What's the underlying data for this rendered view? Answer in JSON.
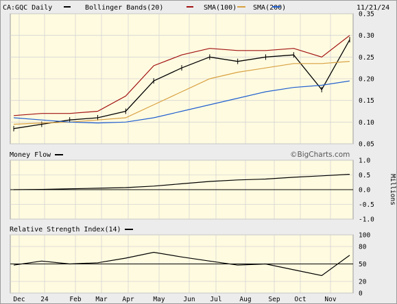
{
  "header": {
    "symbol_label": "CA:GQC Daily",
    "date": "11/21/24",
    "legend": [
      {
        "label": "Bollinger Bands(20)",
        "color": "#a01010"
      },
      {
        "label": "SMA(100)",
        "color": "#d8a040"
      },
      {
        "label": "SMA(200)",
        "color": "#1f5fd0"
      }
    ]
  },
  "watermark": "©BigCharts.com",
  "colors": {
    "panel_bg": "#fffbe0",
    "frame_bg": "#ececec",
    "price": "#000000",
    "bollinger": "#a01010",
    "sma100": "#d8a040",
    "sma200": "#1f5fd0"
  },
  "x_labels": [
    "Dec",
    "24",
    "Feb",
    "Mar",
    "Apr",
    "May",
    "Jun",
    "Jul",
    "Aug",
    "Sep",
    "Oct",
    "Nov"
  ],
  "chart_data": [
    {
      "type": "line",
      "panel": "price",
      "ylim": [
        0.05,
        0.35
      ],
      "yticks": [
        "0.35",
        "0.30",
        "0.25",
        "0.20",
        "0.15",
        "0.10",
        "0.05"
      ],
      "ytick_values": [
        0.35,
        0.3,
        0.25,
        0.2,
        0.15,
        0.1,
        0.05
      ],
      "x": [
        0,
        1,
        2,
        3,
        4,
        5,
        6,
        7,
        8,
        9,
        10,
        11,
        12
      ],
      "series": [
        {
          "name": "CA:GQC Daily",
          "values": [
            0.085,
            0.095,
            0.105,
            0.11,
            0.125,
            0.195,
            0.225,
            0.25,
            0.24,
            0.25,
            0.255,
            0.175,
            0.29
          ]
        },
        {
          "name": "Bollinger Bands(20)",
          "values": [
            0.115,
            0.12,
            0.12,
            0.125,
            0.16,
            0.23,
            0.255,
            0.27,
            0.265,
            0.265,
            0.27,
            0.25,
            0.3
          ]
        },
        {
          "name": "SMA(100)",
          "values": [
            0.095,
            0.098,
            0.1,
            0.105,
            0.11,
            0.14,
            0.17,
            0.2,
            0.215,
            0.225,
            0.235,
            0.235,
            0.24
          ]
        },
        {
          "name": "SMA(200)",
          "values": [
            0.11,
            0.105,
            0.1,
            0.098,
            0.1,
            0.11,
            0.125,
            0.14,
            0.155,
            0.17,
            0.18,
            0.185,
            0.195
          ]
        }
      ]
    },
    {
      "type": "line",
      "panel": "money_flow",
      "title": "Money Flow",
      "ylim": [
        -1.0,
        1.0
      ],
      "yticks": [
        "1.0",
        "0.5",
        "0.0",
        "-0.5",
        "-1.0"
      ],
      "ytick_values": [
        1.0,
        0.5,
        0.0,
        -0.5,
        -1.0
      ],
      "ylabel": "Millions",
      "x": [
        0,
        1,
        2,
        3,
        4,
        5,
        6,
        7,
        8,
        9,
        10,
        11,
        12
      ],
      "series": [
        {
          "values": [
            0.0,
            0.01,
            0.03,
            0.05,
            0.07,
            0.12,
            0.2,
            0.28,
            0.33,
            0.36,
            0.42,
            0.47,
            0.52
          ]
        }
      ]
    },
    {
      "type": "line",
      "panel": "rsi",
      "title": "Relative Strength Index(14)",
      "ylim": [
        0,
        100
      ],
      "yticks": [
        "100",
        "80",
        "50",
        "20",
        "0"
      ],
      "ytick_values": [
        100,
        80,
        50,
        20,
        0
      ],
      "x": [
        0,
        1,
        2,
        3,
        4,
        5,
        6,
        7,
        8,
        9,
        10,
        11,
        12
      ],
      "series": [
        {
          "values": [
            48,
            55,
            50,
            52,
            60,
            70,
            62,
            55,
            48,
            50,
            40,
            30,
            65
          ]
        }
      ]
    }
  ]
}
